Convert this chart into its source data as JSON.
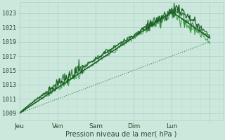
{
  "title": "",
  "xlabel": "Pression niveau de la mer( hPa )",
  "bg_color": "#cce8dd",
  "plot_bg_color": "#cce8dd",
  "grid_color_major": "#b0d4c8",
  "grid_color_minor": "#c0ddd5",
  "x_ticks": [
    0,
    24,
    48,
    72,
    96,
    120
  ],
  "x_tick_labels": [
    "Jeu",
    "Ven",
    "Sam",
    "Dim",
    "Lun",
    ""
  ],
  "y_ticks": [
    1009,
    1011,
    1013,
    1015,
    1017,
    1019,
    1021,
    1023
  ],
  "ylim": [
    1008.0,
    1024.5
  ],
  "xlim": [
    0,
    128
  ],
  "figsize": [
    3.2,
    2.0
  ],
  "dpi": 100
}
